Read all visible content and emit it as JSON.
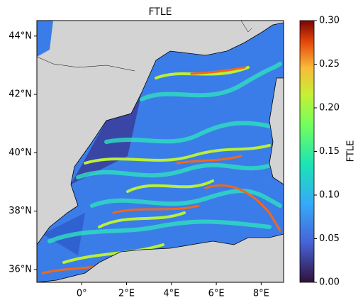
{
  "chart_data": {
    "type": "map",
    "title": "FTLE",
    "xlim": [
      -2.0,
      9.0
    ],
    "ylim": [
      35.56,
      44.53
    ],
    "xticks": [
      {
        "value": 0,
        "label": "0°"
      },
      {
        "value": 2,
        "label": "2°E"
      },
      {
        "value": 4,
        "label": "4°E"
      },
      {
        "value": 6,
        "label": "6°E"
      },
      {
        "value": 8,
        "label": "8°E"
      }
    ],
    "yticks": [
      {
        "value": 36,
        "label": "36°N"
      },
      {
        "value": 38,
        "label": "38°N"
      },
      {
        "value": 40,
        "label": "40°N"
      },
      {
        "value": 42,
        "label": "42°N"
      },
      {
        "value": 44,
        "label": "44°N"
      }
    ],
    "colorbar": {
      "label": "FTLE",
      "lim": [
        0,
        0.3
      ],
      "ticks": [
        {
          "value": 0,
          "label": "0.00"
        },
        {
          "value": 0.05,
          "label": "0.05"
        },
        {
          "value": 0.1,
          "label": "0.10"
        },
        {
          "value": 0.15,
          "label": "0.15"
        },
        {
          "value": 0.2,
          "label": "0.20"
        },
        {
          "value": 0.25,
          "label": "0.25"
        },
        {
          "value": 0.3,
          "label": "0.30"
        }
      ]
    }
  }
}
